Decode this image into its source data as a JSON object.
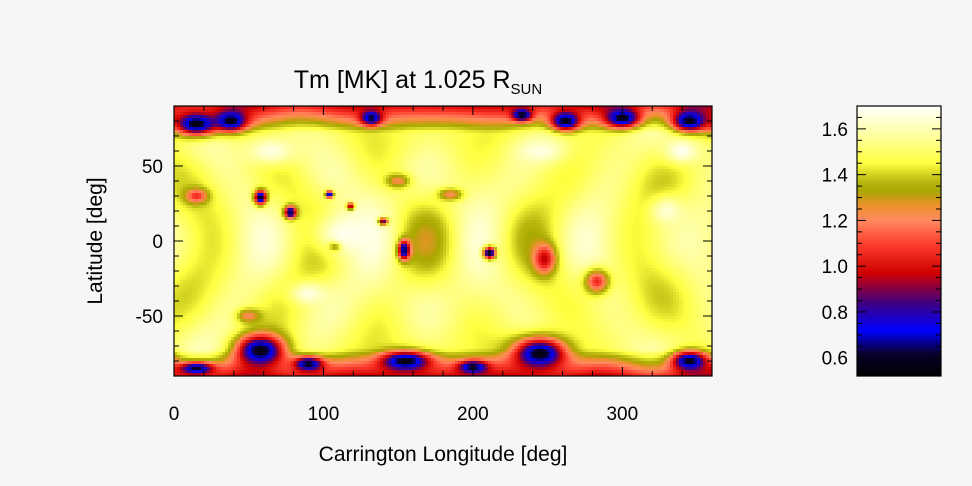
{
  "chart_data": [
    {
      "type": "heatmap",
      "title_main": "Tm [MK] at 1.025 R",
      "title_sub": "SUN",
      "xlabel": "Carrington Longitude [deg]",
      "ylabel": "Latitude [deg]",
      "xlim": [
        0,
        360
      ],
      "ylim": [
        -90,
        90
      ],
      "x_ticks": [
        0,
        100,
        200,
        300
      ],
      "y_ticks": [
        50,
        0,
        -50
      ],
      "value_range": [
        0.52,
        1.7
      ],
      "features": [
        {
          "kind": "cold",
          "lon": 15,
          "lat": 78,
          "value": 0.55,
          "rx": 18,
          "ry": 10
        },
        {
          "kind": "cold",
          "lon": 38,
          "lat": 80,
          "value": 0.56,
          "rx": 14,
          "ry": 9
        },
        {
          "kind": "cold",
          "lon": 132,
          "lat": 82,
          "value": 0.6,
          "rx": 9,
          "ry": 6
        },
        {
          "kind": "cold",
          "lon": 233,
          "lat": 84,
          "value": 0.55,
          "rx": 8,
          "ry": 5
        },
        {
          "kind": "cold",
          "lon": 262,
          "lat": 80,
          "value": 0.55,
          "rx": 12,
          "ry": 8
        },
        {
          "kind": "cold",
          "lon": 300,
          "lat": 82,
          "value": 0.56,
          "rx": 14,
          "ry": 8
        },
        {
          "kind": "cold",
          "lon": 345,
          "lat": 80,
          "value": 0.56,
          "rx": 14,
          "ry": 9
        },
        {
          "kind": "cold",
          "lon": 58,
          "lat": -73,
          "value": 0.55,
          "rx": 20,
          "ry": 13
        },
        {
          "kind": "cold",
          "lon": 90,
          "lat": -82,
          "value": 0.58,
          "rx": 12,
          "ry": 6
        },
        {
          "kind": "cold",
          "lon": 155,
          "lat": -80,
          "value": 0.55,
          "rx": 20,
          "ry": 8
        },
        {
          "kind": "cold",
          "lon": 245,
          "lat": -75,
          "value": 0.55,
          "rx": 22,
          "ry": 13
        },
        {
          "kind": "cold",
          "lon": 200,
          "lat": -84,
          "value": 0.58,
          "rx": 12,
          "ry": 5
        },
        {
          "kind": "cold",
          "lon": 345,
          "lat": -80,
          "value": 0.57,
          "rx": 14,
          "ry": 8
        },
        {
          "kind": "cold",
          "lon": 15,
          "lat": -85,
          "value": 0.6,
          "rx": 14,
          "ry": 5
        },
        {
          "kind": "cold",
          "lon": 58,
          "lat": 29,
          "value": 0.55,
          "rx": 5,
          "ry": 6
        },
        {
          "kind": "cold",
          "lon": 78,
          "lat": 19,
          "value": 0.55,
          "rx": 5,
          "ry": 5
        },
        {
          "kind": "cold",
          "lon": 104,
          "lat": 31,
          "value": 0.55,
          "rx": 3,
          "ry": 3
        },
        {
          "kind": "cold",
          "lon": 118,
          "lat": 23,
          "value": 0.55,
          "rx": 3,
          "ry": 3
        },
        {
          "kind": "cold",
          "lon": 140,
          "lat": 13,
          "value": 0.55,
          "rx": 4,
          "ry": 3
        },
        {
          "kind": "cold",
          "lon": 108,
          "lat": -3,
          "value": 0.55,
          "rx": 5,
          "ry": 4
        },
        {
          "kind": "cold",
          "lon": 154,
          "lat": -6,
          "value": 0.55,
          "rx": 5,
          "ry": 8
        },
        {
          "kind": "cold",
          "lon": 211,
          "lat": -8,
          "value": 0.55,
          "rx": 5,
          "ry": 5
        },
        {
          "kind": "warm",
          "lon": 15,
          "lat": 30,
          "value": 1.05,
          "rx": 9,
          "ry": 6
        },
        {
          "kind": "warm",
          "lon": 185,
          "lat": 31,
          "value": 1.2,
          "rx": 10,
          "ry": 5
        },
        {
          "kind": "warm",
          "lon": 248,
          "lat": -12,
          "value": 0.95,
          "rx": 9,
          "ry": 12
        },
        {
          "kind": "warm",
          "lon": 283,
          "lat": -27,
          "value": 1.05,
          "rx": 10,
          "ry": 10
        },
        {
          "kind": "warm",
          "lon": 150,
          "lat": 40,
          "value": 1.22,
          "rx": 10,
          "ry": 6
        },
        {
          "kind": "warm",
          "lon": 50,
          "lat": -50,
          "value": 1.2,
          "rx": 10,
          "ry": 6
        },
        {
          "kind": "hot",
          "lon": 115,
          "lat": 5,
          "value": 1.68,
          "rx": 30,
          "ry": 20
        },
        {
          "kind": "hot",
          "lon": 65,
          "lat": 60,
          "value": 1.66,
          "rx": 22,
          "ry": 12
        },
        {
          "kind": "hot",
          "lon": 245,
          "lat": 60,
          "value": 1.66,
          "rx": 20,
          "ry": 10
        },
        {
          "kind": "hot",
          "lon": 340,
          "lat": 60,
          "value": 1.68,
          "rx": 14,
          "ry": 10
        },
        {
          "kind": "hot",
          "lon": 90,
          "lat": -35,
          "value": 1.66,
          "rx": 15,
          "ry": 9
        },
        {
          "kind": "hot",
          "lon": 330,
          "lat": 20,
          "value": 1.64,
          "rx": 14,
          "ry": 12
        }
      ]
    },
    {
      "type": "heatmap",
      "colorbar_range": [
        0.52,
        1.7
      ],
      "colorbar_ticks": [
        "1.6",
        "1.4",
        "1.2",
        "1.0",
        "0.8",
        "0.6"
      ],
      "colorbar_tick_values": [
        1.6,
        1.4,
        1.2,
        1.0,
        0.8,
        0.6
      ],
      "colormap": [
        {
          "v": 0.52,
          "c": "#000000"
        },
        {
          "v": 0.62,
          "c": "#0a0030"
        },
        {
          "v": 0.72,
          "c": "#0000ff"
        },
        {
          "v": 0.84,
          "c": "#400080"
        },
        {
          "v": 0.97,
          "c": "#d00000"
        },
        {
          "v": 1.1,
          "c": "#ff4030"
        },
        {
          "v": 1.2,
          "c": "#ff8a60"
        },
        {
          "v": 1.26,
          "c": "#f09030"
        },
        {
          "v": 1.33,
          "c": "#a8a800"
        },
        {
          "v": 1.37,
          "c": "#b8b810"
        },
        {
          "v": 1.45,
          "c": "#ffff40"
        },
        {
          "v": 1.55,
          "c": "#ffff90"
        },
        {
          "v": 1.7,
          "c": "#ffffff"
        }
      ]
    }
  ]
}
